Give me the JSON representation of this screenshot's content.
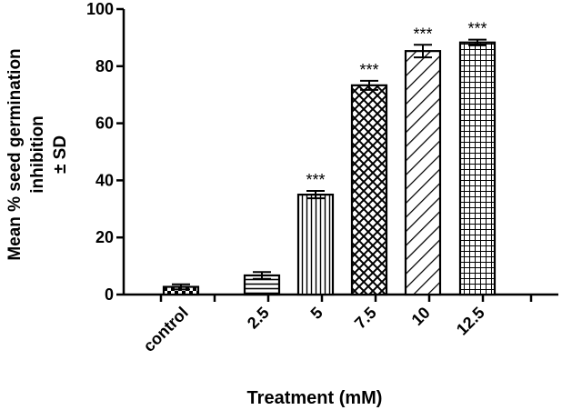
{
  "chart_data": {
    "type": "bar",
    "title": "",
    "xlabel": "Treatment (mM)",
    "ylabel_lines": [
      "Mean % seed germination",
      "inhibition",
      "± SD"
    ],
    "ylim": [
      0,
      100
    ],
    "yticks": [
      0,
      20,
      40,
      60,
      80,
      100
    ],
    "ytick_labels": [
      "0",
      "20",
      "40",
      "60",
      "80",
      "100"
    ],
    "categories": [
      "control",
      "2.5",
      "5",
      "7.5",
      "10",
      "12.5"
    ],
    "values": [
      2.7,
      6.7,
      35.0,
      73.3,
      85.3,
      88.3
    ],
    "errors": [
      0.9,
      1.2,
      1.3,
      1.6,
      2.2,
      1.0
    ],
    "significance": [
      "",
      "",
      "***",
      "***",
      "***",
      "***"
    ],
    "patterns": [
      "checker",
      "horizontal",
      "vertical",
      "crosshatch",
      "diagonal",
      "grid"
    ]
  }
}
